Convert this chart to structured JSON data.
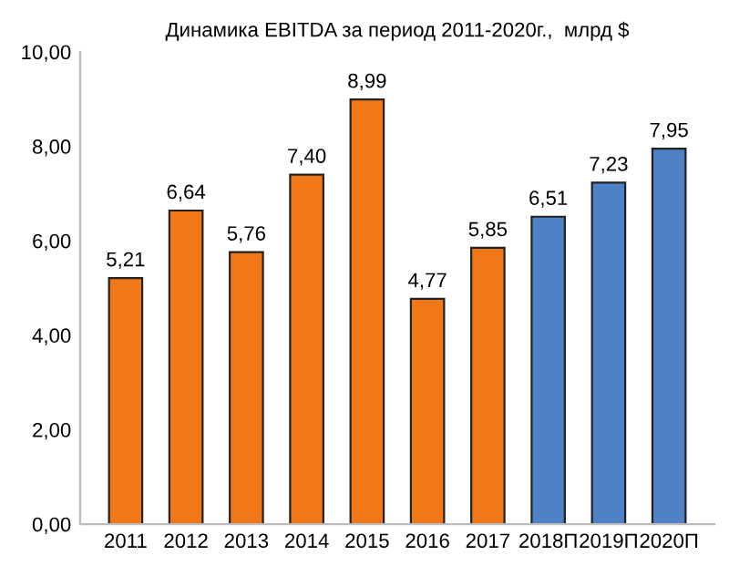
{
  "chart_data": {
    "type": "bar",
    "title": "Динамика EBITDA за период 2011-2020г.,  млрд $",
    "categories": [
      "2011",
      "2012",
      "2013",
      "2014",
      "2015",
      "2016",
      "2017",
      "2018П",
      "2019П",
      "2020П"
    ],
    "values": [
      5.21,
      6.64,
      5.76,
      7.4,
      8.99,
      4.77,
      5.85,
      6.51,
      7.23,
      7.95
    ],
    "colors": [
      "#f07818",
      "#f07818",
      "#f07818",
      "#f07818",
      "#f07818",
      "#f07818",
      "#f07818",
      "#4f81c6",
      "#4f81c6",
      "#4f81c6"
    ],
    "value_labels": [
      "5,21",
      "6,64",
      "5,76",
      "7,40",
      "8,99",
      "4,77",
      "5,85",
      "6,51",
      "7,23",
      "7,95"
    ],
    "ylim": [
      0,
      10
    ],
    "yticks": [
      {
        "value": 0,
        "label": "0,00"
      },
      {
        "value": 2,
        "label": "2,00"
      },
      {
        "value": 4,
        "label": "4,00"
      },
      {
        "value": 6,
        "label": "6,00"
      },
      {
        "value": 8,
        "label": "8,00"
      },
      {
        "value": 10,
        "label": "10,00"
      }
    ],
    "grid": false,
    "legend": false
  }
}
